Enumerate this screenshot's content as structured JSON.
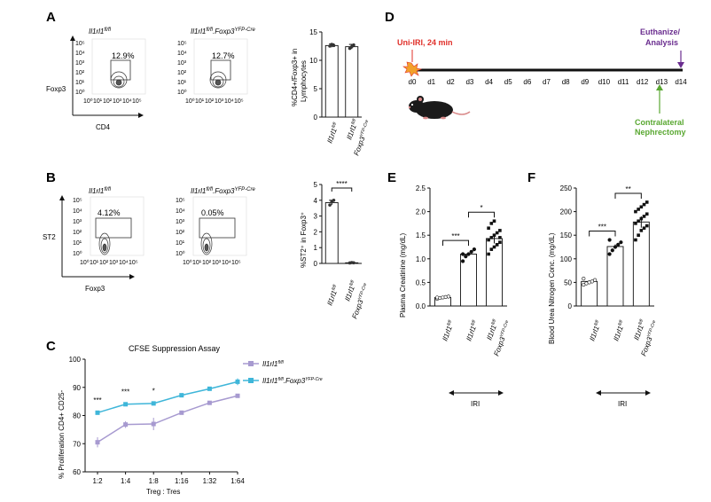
{
  "panels": {
    "a": "A",
    "b": "B",
    "c": "C",
    "d": "D",
    "e": "E",
    "f": "F"
  },
  "genotypes": {
    "wt_plain": "Il1rl1fl/fl",
    "wt_sup": "fl/fl",
    "wt_base": "Il1rl1",
    "ko_base": "Il1rl1",
    "ko_sup": "fl/fl",
    "ko_mid": ".Foxp3",
    "ko_sup2": "YFP-Cre",
    "foxp3": "Foxp3"
  },
  "flow": {
    "ticks": [
      "10⁰",
      "10¹",
      "10²",
      "10³",
      "10⁴",
      "10⁵"
    ],
    "a": {
      "ylabel": "Foxp3",
      "xlabel": "CD4",
      "gate_wt": "12.9%",
      "gate_ko": "12.7%",
      "bar_ylabel1": "%CD4+/Foxp3+ in",
      "bar_ylabel2": "Lymphocytes"
    },
    "b": {
      "ylabel": "ST2",
      "xlabel": "Foxp3",
      "gate_wt": "4.12%",
      "gate_ko": "0.05%",
      "bar_ylabel": "%ST2⁺ in Foxp3⁺",
      "sig": "****"
    }
  },
  "timeline": {
    "days": [
      "d0",
      "d1",
      "d2",
      "d3",
      "d4",
      "d5",
      "d6",
      "d7",
      "d8",
      "d9",
      "d10",
      "d11",
      "d12",
      "d13",
      "d14"
    ],
    "start_label": "Uni-IRI, 24 min",
    "end_label1": "Euthanize/",
    "end_label2": "Analysis",
    "mid_label1": "Contralateral",
    "mid_label2": "Nephrectomy",
    "start_color": "#e0302a",
    "end_color": "#6a2d8f",
    "mid_color": "#5aa832"
  },
  "iri_label": "IRI",
  "chart_data": [
    {
      "id": "A-bar",
      "type": "bar",
      "categories": [
        "Il1rl1 fl/fl",
        "Il1rl1 fl/fl.Foxp3 YFP-Cre"
      ],
      "values": [
        12.6,
        12.4
      ],
      "ylabel": "%CD4+/Foxp3+ in Lymphocytes",
      "ylim": [
        0,
        15
      ],
      "yticks": [
        0,
        5,
        10,
        15
      ]
    },
    {
      "id": "B-bar",
      "type": "bar",
      "categories": [
        "Il1rl1 fl/fl",
        "Il1rl1 fl/fl.Foxp3 YFP-Cre"
      ],
      "values": [
        3.85,
        0.04
      ],
      "ylabel": "%ST2+ in Foxp3+",
      "ylim": [
        0,
        5
      ],
      "yticks": [
        0,
        1,
        2,
        3,
        4,
        5
      ],
      "significance": "****"
    },
    {
      "id": "C-line",
      "type": "line",
      "title": "CFSE Suppression Assay",
      "xlabel": "Treg : Tres",
      "ylabel": "% Proliferation CD4+ CD25-",
      "categories": [
        "1:2",
        "1:4",
        "1:8",
        "1:16",
        "1:32",
        "1:64"
      ],
      "ylim": [
        60,
        100
      ],
      "yticks": [
        60,
        70,
        80,
        90,
        100
      ],
      "series": [
        {
          "name": "Il1rl1 fl/fl",
          "color": "#a79ad0",
          "values": [
            70.5,
            76.8,
            77.0,
            81.0,
            84.5,
            87.0
          ],
          "errors": [
            1.8,
            1.2,
            2.2,
            0.5,
            0.5,
            0.6
          ]
        },
        {
          "name": "Il1rl1 fl/fl.Foxp3 YFP-Cre",
          "color": "#3fb6d9",
          "values": [
            81.0,
            84.0,
            84.3,
            87.2,
            89.5,
            92.0
          ],
          "errors": [
            0.6,
            0.5,
            0.5,
            0.4,
            0.4,
            1.2
          ]
        }
      ],
      "significance": [
        "***",
        "***",
        "*",
        "",
        "",
        ""
      ]
    },
    {
      "id": "E-bar",
      "type": "bar",
      "ylabel": "Plasma Creatinine (mg/dL)",
      "categories": [
        "Il1rl1 fl/fl",
        "Il1rl1 fl/fl",
        "Il1rl1 fl/fl.Foxp3 YFP-Cre"
      ],
      "values": [
        0.18,
        1.1,
        1.43
      ],
      "ylim": [
        0,
        2.5
      ],
      "yticks": [
        0.0,
        0.5,
        1.0,
        1.5,
        2.0,
        2.5
      ],
      "points": [
        [
          0.15,
          0.17,
          0.18,
          0.19,
          0.2,
          0.18
        ],
        [
          0.95,
          1.05,
          1.1,
          1.15,
          1.2,
          1.1
        ],
        [
          1.1,
          1.2,
          1.25,
          1.3,
          1.35,
          1.4,
          1.45,
          1.5,
          1.55,
          1.6,
          1.65,
          1.75,
          1.8,
          1.3,
          1.45
        ]
      ],
      "significance": [
        "***",
        "*"
      ]
    },
    {
      "id": "F-bar",
      "type": "bar",
      "ylabel": "Blood Urea Nitrogen Conc. (mg/dL)",
      "categories": [
        "Il1rl1 fl/fl",
        "Il1rl1 fl/fl",
        "Il1rl1 fl/fl.Foxp3 YFP-Cre"
      ],
      "values": [
        52,
        126,
        178
      ],
      "ylim": [
        0,
        250
      ],
      "yticks": [
        0,
        50,
        100,
        150,
        200,
        250
      ],
      "points": [
        [
          45,
          48,
          50,
          52,
          55,
          58
        ],
        [
          110,
          118,
          125,
          130,
          135,
          140
        ],
        [
          140,
          150,
          160,
          165,
          170,
          175,
          180,
          185,
          190,
          195,
          200,
          205,
          210,
          215,
          220
        ]
      ],
      "significance": [
        "***",
        "**"
      ]
    }
  ]
}
